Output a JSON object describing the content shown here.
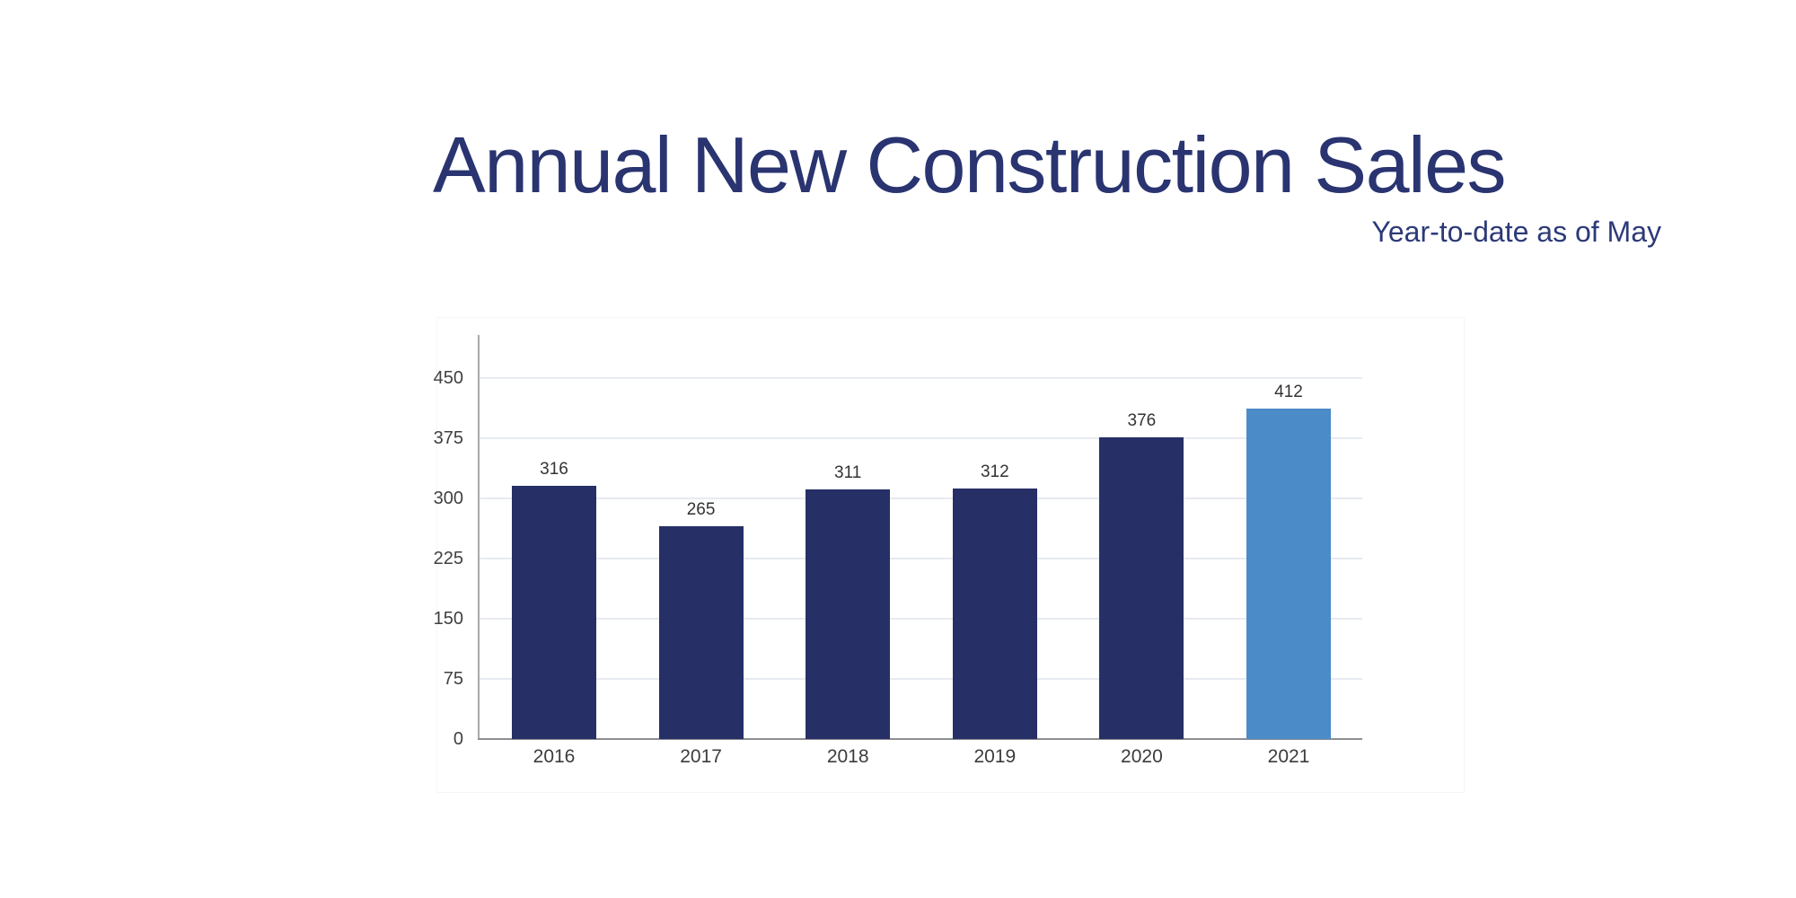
{
  "page": {
    "background": "#ffffff"
  },
  "header": {
    "title": "Annual New Construction Sales",
    "subtitle": "Year-to-date as of May",
    "title_color": "#293470",
    "subtitle_color": "#2c3a78"
  },
  "chart_data": {
    "type": "bar",
    "title": "Annual New Construction Sales",
    "subtitle": "Year-to-date as of May",
    "categories": [
      "2016",
      "2017",
      "2018",
      "2019",
      "2020",
      "2021"
    ],
    "values": [
      316,
      265,
      311,
      312,
      376,
      412
    ],
    "bar_colors": [
      "#262f66",
      "#262f66",
      "#262f66",
      "#262f66",
      "#262f66",
      "#4b8bc8"
    ],
    "highlighted_category": "2021",
    "data_labels": [
      316,
      265,
      311,
      312,
      376,
      412
    ],
    "xlabel": "",
    "ylabel": "",
    "y_ticks": [
      0,
      75,
      150,
      225,
      300,
      375,
      450
    ],
    "ylim": [
      0,
      503
    ],
    "grid": true,
    "legend": "none",
    "colors": {
      "gridline": "#e7eaf1",
      "y_axis_line": "#a7a9ac",
      "x_axis_line": "#8d8f92",
      "tick_label": "#404040",
      "category_label": "#3c3c3c",
      "value_label": "#333333"
    }
  }
}
